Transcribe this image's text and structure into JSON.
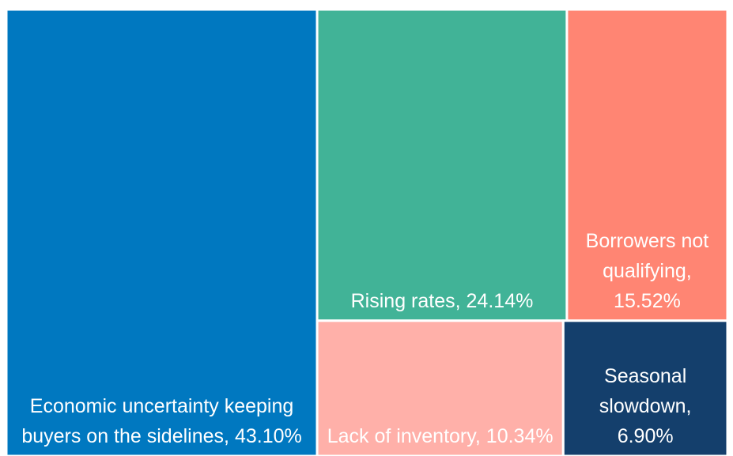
{
  "chart_data": {
    "type": "treemap",
    "categories": [
      "Economic uncertainty keeping buyers on the sidelines,",
      "Rising rates,",
      "Borrowers not qualifying,",
      "Lack of inventory,",
      "Seasonal slowdown,"
    ],
    "values": [
      43.1,
      24.14,
      15.52,
      10.34,
      6.9
    ],
    "value_labels": [
      "43.10%",
      "24.14%",
      "15.52%",
      "10.34%",
      "6.90%"
    ],
    "colors": [
      "#0078c0",
      "#41b397",
      "#ff8573",
      "#ffb0a9",
      "#143f6c"
    ]
  }
}
